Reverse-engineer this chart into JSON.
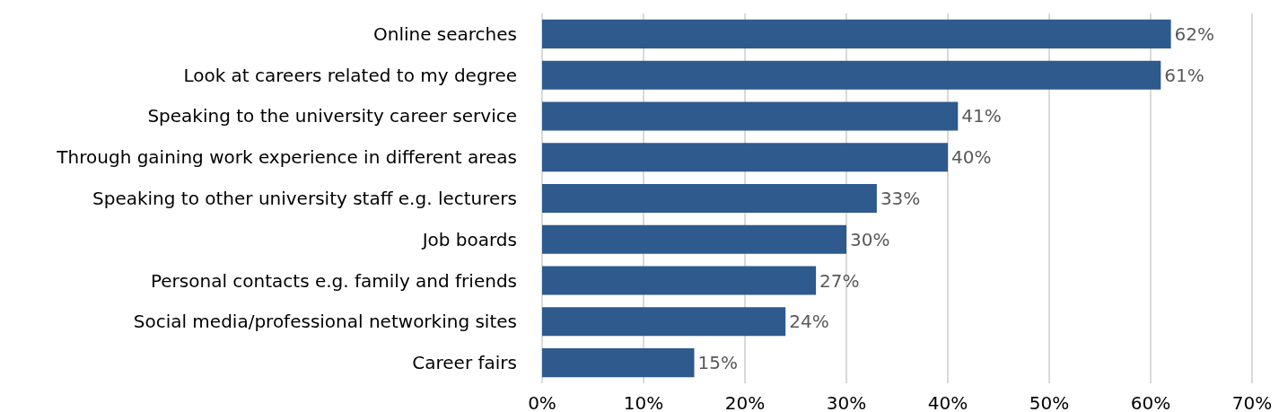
{
  "chart_data": {
    "type": "bar",
    "orientation": "horizontal",
    "categories": [
      "Online searches",
      "Look at careers related to my degree",
      "Speaking to the university career service",
      "Through gaining work experience in different areas",
      "Speaking to other university staff e.g. lecturers",
      "Job boards",
      "Personal contacts e.g. family and friends",
      "Social media/professional networking sites",
      "Career fairs"
    ],
    "values": [
      62,
      61,
      41,
      40,
      33,
      30,
      27,
      24,
      15
    ],
    "value_labels": [
      "62%",
      "61%",
      "41%",
      "40%",
      "33%",
      "30%",
      "27%",
      "24%",
      "15%"
    ],
    "color": "#2e5a8e",
    "xlim": [
      0,
      70
    ],
    "xticks": [
      {
        "value": 0,
        "label": "0%"
      },
      {
        "value": 10,
        "label": "10%"
      },
      {
        "value": 20,
        "label": "20%"
      },
      {
        "value": 30,
        "label": "30%"
      },
      {
        "value": 40,
        "label": "40%"
      },
      {
        "value": 50,
        "label": "50%"
      },
      {
        "value": 60,
        "label": "60%"
      },
      {
        "value": 70,
        "label": "70%"
      }
    ],
    "grid": "x"
  }
}
